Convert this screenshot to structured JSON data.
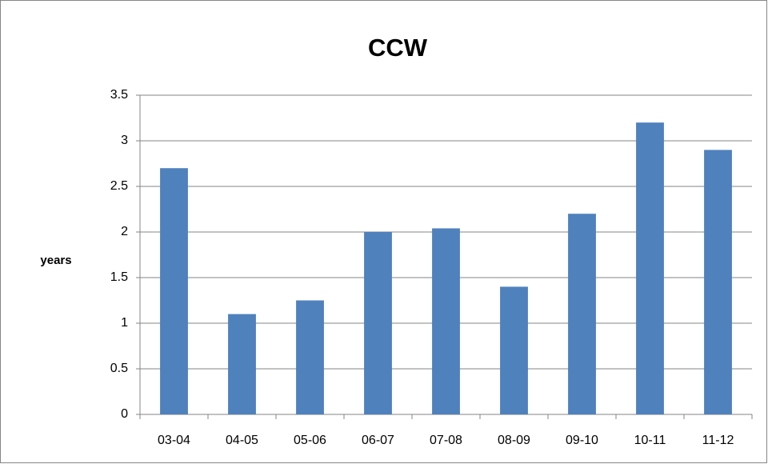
{
  "chart_data": {
    "type": "bar",
    "title": "CCW",
    "ylabel": "years",
    "categories": [
      "03-04",
      "04-05",
      "05-06",
      "06-07",
      "07-08",
      "08-09",
      "09-10",
      "10-11",
      "11-12"
    ],
    "values": [
      2.7,
      1.1,
      1.25,
      2.0,
      2.04,
      1.4,
      2.2,
      3.2,
      2.9
    ],
    "color": "#4f81bd",
    "ylim": [
      0,
      3.5
    ],
    "yticks": [
      0,
      0.5,
      1,
      1.5,
      2,
      2.5,
      3,
      3.5
    ],
    "grid": true
  }
}
